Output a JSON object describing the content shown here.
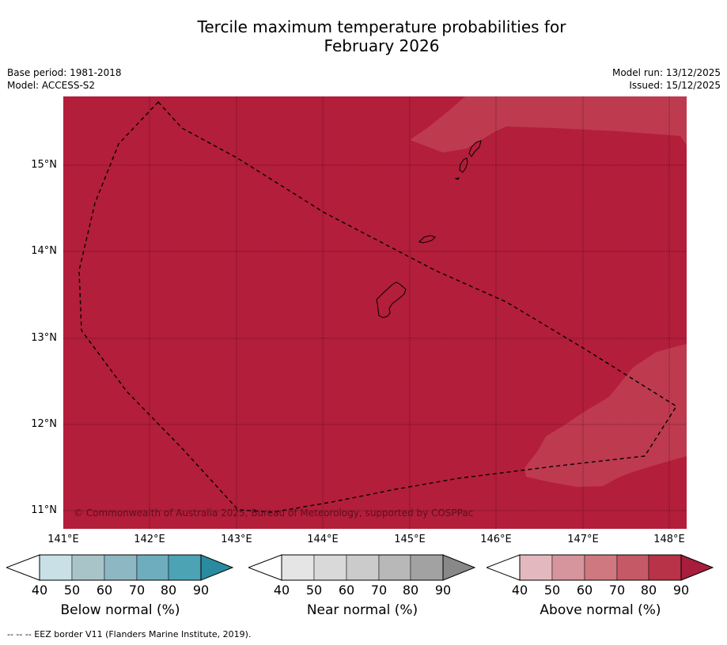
{
  "title_line1": "Tercile maximum temperature probabilities for",
  "title_line2": "February 2026",
  "meta_left": {
    "base_period": "Base period: 1981-2018",
    "model": "Model: ACCESS-S2"
  },
  "meta_right": {
    "model_run": "Model run: 13/12/2025",
    "issued": "Issued: 15/12/2025"
  },
  "axes": {
    "lat_labels": [
      "15°N",
      "14°N",
      "13°N",
      "12°N",
      "11°N"
    ],
    "lon_labels": [
      "141°E",
      "142°E",
      "143°E",
      "144°E",
      "145°E",
      "146°E",
      "147°E",
      "148°E"
    ]
  },
  "map_colors": {
    "base": "#b31e3a",
    "lighter": "#be3a4f",
    "coast": "#000000"
  },
  "copyright": "© Commonwealth of Australia 2025, Bureau of Meteorology, supported by COSPPac",
  "legends": [
    {
      "label": "Below normal (%)",
      "ticks": [
        "40",
        "50",
        "60",
        "70",
        "80",
        "90"
      ],
      "colors": [
        "#ffffff",
        "#c9e0e6",
        "#a9c4c9",
        "#8db7c2",
        "#6eadbd",
        "#4ba3b4",
        "#2a8a9f"
      ]
    },
    {
      "label": "Near normal (%)",
      "ticks": [
        "40",
        "50",
        "60",
        "70",
        "80",
        "90"
      ],
      "colors": [
        "#ffffff",
        "#e5e5e5",
        "#d9d9d9",
        "#cbcbcb",
        "#b8b8b8",
        "#a2a2a2",
        "#888888"
      ]
    },
    {
      "label": "Above normal (%)",
      "ticks": [
        "40",
        "50",
        "60",
        "70",
        "80",
        "90"
      ],
      "colors": [
        "#ffffff",
        "#e3b9bf",
        "#d6959c",
        "#cf7880",
        "#c55a66",
        "#b83348",
        "#a81c3c"
      ]
    }
  ],
  "footer": "--  --  -- EEZ border V11 (Flanders Marine Institute, 2019)."
}
